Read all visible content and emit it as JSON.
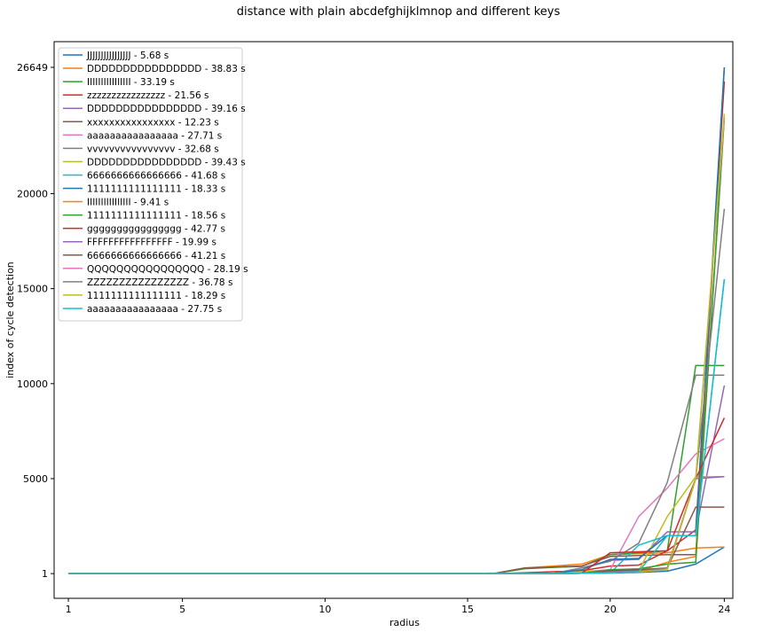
{
  "chart_data": {
    "type": "line",
    "title": "distance with plain abcdefghijklmnop and different keys",
    "xlabel": "radius",
    "ylabel": "index of cycle detection",
    "xlim": [
      0.5,
      24.3
    ],
    "ylim": [
      -1300,
      28000
    ],
    "x_ticks": [
      1,
      5,
      10,
      15,
      20,
      24
    ],
    "y_ticks": [
      1,
      5000,
      10000,
      15000,
      20000,
      26649
    ],
    "grid": false,
    "legend_position": "upper left",
    "x": [
      1,
      2,
      3,
      4,
      5,
      6,
      7,
      8,
      9,
      10,
      11,
      12,
      13,
      14,
      15,
      16,
      17,
      18,
      19,
      20,
      21,
      22,
      23,
      24
    ],
    "series": [
      {
        "name": "JJJJJJJJJJJJJJJJ - 5.68 s",
        "color": "#1f77b4",
        "values": [
          1,
          1,
          1,
          1,
          1,
          1,
          1,
          1,
          1,
          1,
          1,
          1,
          1,
          1,
          1,
          2,
          4,
          8,
          16,
          32,
          64,
          128,
          500,
          1400
        ]
      },
      {
        "name": "DDDDDDDDDDDDDDDD - 38.83 s",
        "color": "#ff7f0e",
        "values": [
          1,
          1,
          1,
          1,
          1,
          1,
          1,
          1,
          1,
          1,
          1,
          1,
          1,
          1,
          1,
          20,
          300,
          400,
          500,
          1000,
          1050,
          1100,
          1350,
          1400
        ]
      },
      {
        "name": "IIIIIIIIIIIIIIII - 33.19 s",
        "color": "#2ca02c",
        "values": [
          1,
          1,
          1,
          1,
          1,
          1,
          1,
          1,
          1,
          1,
          1,
          1,
          1,
          1,
          1,
          20,
          260,
          330,
          380,
          1000,
          1100,
          1200,
          10950,
          10950
        ]
      },
      {
        "name": "zzzzzzzzzzzzzzzz - 21.56 s",
        "color": "#d62728",
        "values": [
          1,
          1,
          1,
          1,
          1,
          1,
          1,
          1,
          1,
          1,
          1,
          1,
          1,
          1,
          1,
          2,
          50,
          100,
          150,
          400,
          450,
          1200,
          2300,
          25900
        ]
      },
      {
        "name": "DDDDDDDDDDDDDDDD - 39.16 s",
        "color": "#9467bd",
        "values": [
          1,
          1,
          1,
          1,
          1,
          1,
          1,
          1,
          1,
          1,
          1,
          1,
          1,
          1,
          1,
          2,
          4,
          8,
          300,
          700,
          750,
          2200,
          2200,
          9900
        ]
      },
      {
        "name": "xxxxxxxxxxxxxxxx - 12.23 s",
        "color": "#8c564b",
        "values": [
          1,
          1,
          1,
          1,
          1,
          1,
          1,
          1,
          1,
          1,
          1,
          1,
          1,
          1,
          1,
          30,
          300,
          350,
          400,
          900,
          950,
          1000,
          1000,
          26649
        ]
      },
      {
        "name": "aaaaaaaaaaaaaaaa - 27.71 s",
        "color": "#e377c2",
        "values": [
          1,
          1,
          1,
          1,
          1,
          1,
          1,
          1,
          1,
          1,
          1,
          1,
          1,
          1,
          1,
          2,
          4,
          8,
          100,
          200,
          3000,
          4500,
          6300,
          7100
        ]
      },
      {
        "name": "vvvvvvvvvvvvvvvv - 32.68 s",
        "color": "#7f7f7f",
        "values": [
          1,
          1,
          1,
          1,
          1,
          1,
          1,
          1,
          1,
          1,
          1,
          1,
          1,
          1,
          1,
          2,
          4,
          8,
          300,
          650,
          1600,
          4800,
          10450,
          10450
        ]
      },
      {
        "name": "DDDDDDDDDDDDDDDD - 39.43 s",
        "color": "#bcbd22",
        "values": [
          1,
          1,
          1,
          1,
          1,
          1,
          1,
          1,
          1,
          1,
          1,
          1,
          1,
          1,
          1,
          2,
          4,
          8,
          100,
          150,
          150,
          3000,
          5100,
          5100
        ]
      },
      {
        "name": "6666666666666666 - 41.68 s",
        "color": "#17becf",
        "values": [
          1,
          1,
          1,
          1,
          1,
          1,
          1,
          1,
          1,
          1,
          1,
          1,
          1,
          1,
          1,
          2,
          4,
          8,
          16,
          32,
          1500,
          2000,
          2000,
          15500
        ]
      },
      {
        "name": "1111111111111111 - 18.33 s",
        "color": "#1f77b4",
        "values": [
          1,
          1,
          1,
          1,
          1,
          1,
          1,
          1,
          1,
          1,
          1,
          1,
          1,
          1,
          1,
          2,
          4,
          8,
          200,
          750,
          800,
          2000,
          2000,
          26649
        ]
      },
      {
        "name": "IIIIIIIIIIIIIIII - 9.41 s",
        "color": "#ff7f0e",
        "values": [
          1,
          1,
          1,
          1,
          1,
          1,
          1,
          1,
          1,
          1,
          1,
          1,
          1,
          1,
          1,
          2,
          4,
          8,
          16,
          120,
          130,
          600,
          900,
          24000
        ]
      },
      {
        "name": "1111111111111111 - 18.56 s",
        "color": "#2ca02c",
        "values": [
          1,
          1,
          1,
          1,
          1,
          1,
          1,
          1,
          1,
          1,
          1,
          1,
          1,
          1,
          1,
          2,
          4,
          8,
          16,
          200,
          250,
          500,
          600,
          24000
        ]
      },
      {
        "name": "gggggggggggggggg - 42.77 s",
        "color": "#d62728",
        "values": [
          1,
          1,
          1,
          1,
          1,
          1,
          1,
          1,
          1,
          1,
          1,
          1,
          1,
          1,
          1,
          2,
          4,
          8,
          16,
          1100,
          1150,
          1200,
          5000,
          8200
        ]
      },
      {
        "name": "FFFFFFFFFFFFFFFF - 19.99 s",
        "color": "#9467bd",
        "values": [
          1,
          1,
          1,
          1,
          1,
          1,
          1,
          1,
          1,
          1,
          1,
          1,
          1,
          1,
          1,
          2,
          4,
          8,
          16,
          100,
          150,
          200,
          5000,
          5100
        ]
      },
      {
        "name": "6666666666666666 - 41.21 s",
        "color": "#8c564b",
        "values": [
          1,
          1,
          1,
          1,
          1,
          1,
          1,
          1,
          1,
          1,
          1,
          1,
          1,
          1,
          1,
          2,
          4,
          8,
          16,
          150,
          200,
          300,
          3500,
          3500
        ]
      },
      {
        "name": "QQQQQQQQQQQQQQQQ - 28.19 s",
        "color": "#e377c2",
        "values": [
          1,
          1,
          1,
          1,
          1,
          1,
          1,
          1,
          1,
          1,
          1,
          1,
          1,
          1,
          1,
          2,
          4,
          8,
          16,
          50,
          100,
          200,
          5000,
          24000
        ]
      },
      {
        "name": "ZZZZZZZZZZZZZZZZ - 36.78 s",
        "color": "#7f7f7f",
        "values": [
          1,
          1,
          1,
          1,
          1,
          1,
          1,
          1,
          1,
          1,
          1,
          1,
          1,
          1,
          1,
          2,
          4,
          8,
          16,
          50,
          100,
          300,
          5000,
          19200
        ]
      },
      {
        "name": "1111111111111111 - 18.29 s",
        "color": "#bcbd22",
        "values": [
          1,
          1,
          1,
          1,
          1,
          1,
          1,
          1,
          1,
          1,
          1,
          1,
          1,
          1,
          1,
          2,
          4,
          8,
          16,
          50,
          100,
          200,
          5000,
          24200
        ]
      },
      {
        "name": "aaaaaaaaaaaaaaaa - 27.75 s",
        "color": "#17becf",
        "values": [
          1,
          1,
          1,
          1,
          1,
          1,
          1,
          1,
          1,
          1,
          1,
          1,
          1,
          1,
          1,
          2,
          4,
          8,
          16,
          50,
          100,
          2000,
          2000,
          15500
        ]
      }
    ]
  }
}
